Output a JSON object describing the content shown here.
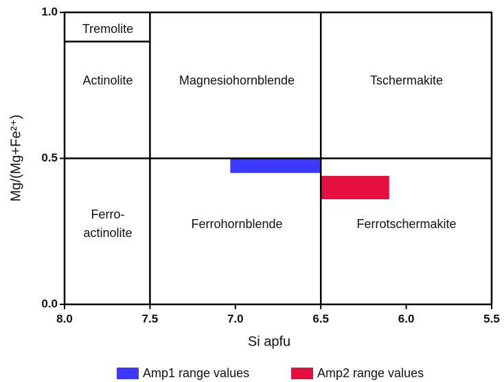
{
  "chart_data": {
    "type": "classification",
    "x_label": "Si apfu",
    "y_label": "Mg/(Mg+Fe²⁺)",
    "xlim": [
      8.0,
      5.5
    ],
    "ylim": [
      0.0,
      1.0
    ],
    "xticks": [
      {
        "value": 8.0,
        "label": "8.0"
      },
      7.5,
      {
        "value": 7.0,
        "label": "7.0"
      },
      6.5,
      {
        "value": 6.0,
        "label": "6.0"
      },
      5.5
    ],
    "yticks": [
      {
        "value": 0.0,
        "label": "0.0"
      },
      0.5,
      {
        "value": 1.0,
        "label": "1.0"
      }
    ],
    "boundaries": [
      {
        "x": [
          7.5,
          7.5
        ],
        "y": [
          0.0,
          1.0
        ]
      },
      {
        "x": [
          6.5,
          6.5
        ],
        "y": [
          0.0,
          1.0
        ]
      },
      {
        "x": [
          8.0,
          5.5
        ],
        "y": [
          0.5,
          0.5
        ]
      },
      {
        "x": [
          8.0,
          7.5
        ],
        "y": [
          0.9,
          0.9
        ]
      }
    ],
    "regions": [
      {
        "lines": [
          "Tremolite"
        ]
      },
      {
        "lines": [
          "Actinolite"
        ]
      },
      {
        "lines": [
          "Magnesiohornblende"
        ]
      },
      {
        "lines": [
          "Tschermakite"
        ]
      },
      {
        "lines": [
          "Ferro-",
          "actinolite"
        ]
      },
      {
        "lines": [
          "Ferrohornblende"
        ]
      },
      {
        "lines": [
          "Ferrotschermakite"
        ]
      }
    ],
    "series": [
      {
        "name": "Amp1 range values",
        "color": "#3b3bff",
        "x": [
          7.03,
          6.5
        ],
        "y": [
          0.45,
          0.5
        ]
      },
      {
        "name": "Amp2 range values",
        "color": "#e5103f",
        "x": [
          6.5,
          6.1
        ],
        "y": [
          0.36,
          0.44
        ]
      }
    ]
  }
}
